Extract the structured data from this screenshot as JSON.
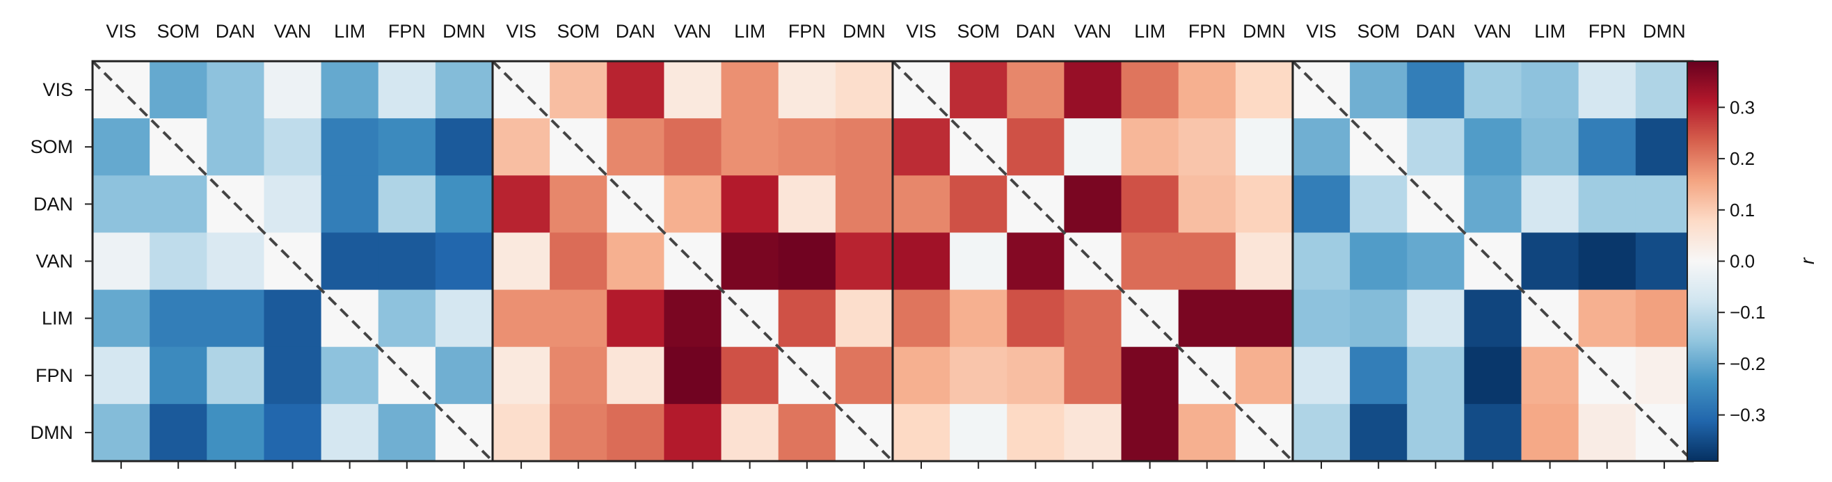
{
  "chart_data": {
    "type": "heatmap",
    "networks": [
      "VIS",
      "SOM",
      "DAN",
      "VAN",
      "LIM",
      "FPN",
      "DMN"
    ],
    "colorbar": {
      "label": "r",
      "vmin": -0.39,
      "vmax": 0.39,
      "ticks": [
        0.3,
        0.2,
        0.1,
        0.0,
        -0.1,
        -0.2,
        -0.3
      ],
      "tick_labels": [
        "0.3",
        "0.2",
        "0.1",
        "0.0",
        "−0.1",
        "−0.2",
        "−0.3"
      ],
      "colormap": "RdBu_r",
      "stops": [
        "#053061",
        "#2166ac",
        "#4393c3",
        "#92c5de",
        "#d1e5f0",
        "#f7f7f7",
        "#fddbc7",
        "#f4a582",
        "#d6604d",
        "#b2182b",
        "#67001f"
      ]
    },
    "diagonal_line": "dashed",
    "diagonal_color": "#444444",
    "matrices": [
      {
        "values": [
          [
            0.0,
            -0.2,
            -0.16,
            -0.02,
            -0.2,
            -0.07,
            -0.17
          ],
          [
            -0.2,
            0.0,
            -0.16,
            -0.1,
            -0.27,
            -0.25,
            -0.33
          ],
          [
            -0.16,
            -0.16,
            0.0,
            -0.06,
            -0.27,
            -0.12,
            -0.24
          ],
          [
            -0.02,
            -0.1,
            -0.06,
            0.0,
            -0.33,
            -0.33,
            -0.31
          ],
          [
            -0.2,
            -0.27,
            -0.27,
            -0.33,
            0.0,
            -0.16,
            -0.07
          ],
          [
            -0.07,
            -0.25,
            -0.12,
            -0.33,
            -0.16,
            0.0,
            -0.19
          ],
          [
            -0.17,
            -0.33,
            -0.24,
            -0.31,
            -0.07,
            -0.19,
            0.0
          ]
        ]
      },
      {
        "values": [
          [
            0.0,
            0.12,
            0.3,
            0.04,
            0.18,
            0.04,
            0.07
          ],
          [
            0.12,
            0.0,
            0.19,
            0.22,
            0.18,
            0.19,
            0.2
          ],
          [
            0.3,
            0.19,
            0.0,
            0.14,
            0.31,
            0.05,
            0.2
          ],
          [
            0.04,
            0.22,
            0.14,
            0.0,
            0.37,
            0.38,
            0.3
          ],
          [
            0.18,
            0.18,
            0.31,
            0.37,
            0.0,
            0.25,
            0.07
          ],
          [
            0.04,
            0.19,
            0.05,
            0.38,
            0.25,
            0.0,
            0.21
          ],
          [
            0.07,
            0.2,
            0.22,
            0.31,
            0.06,
            0.21,
            0.0
          ]
        ]
      },
      {
        "values": [
          [
            0.0,
            0.29,
            0.19,
            0.34,
            0.21,
            0.14,
            0.08
          ],
          [
            0.29,
            0.0,
            0.25,
            -0.01,
            0.13,
            0.11,
            -0.01
          ],
          [
            0.19,
            0.25,
            0.0,
            0.37,
            0.25,
            0.12,
            0.09
          ],
          [
            0.33,
            -0.01,
            0.36,
            0.0,
            0.22,
            0.22,
            0.05
          ],
          [
            0.21,
            0.14,
            0.25,
            0.22,
            0.0,
            0.37,
            0.37
          ],
          [
            0.14,
            0.11,
            0.12,
            0.22,
            0.37,
            0.0,
            0.14
          ],
          [
            0.08,
            -0.01,
            0.08,
            0.05,
            0.37,
            0.14,
            0.0
          ]
        ]
      },
      {
        "values": [
          [
            0.0,
            -0.19,
            -0.27,
            -0.14,
            -0.16,
            -0.07,
            -0.12
          ],
          [
            -0.19,
            0.0,
            -0.11,
            -0.22,
            -0.17,
            -0.27,
            -0.35
          ],
          [
            -0.27,
            -0.11,
            0.0,
            -0.2,
            -0.07,
            -0.14,
            -0.14
          ],
          [
            -0.14,
            -0.22,
            -0.2,
            0.0,
            -0.36,
            -0.38,
            -0.35
          ],
          [
            -0.16,
            -0.17,
            -0.07,
            -0.36,
            0.0,
            0.14,
            0.16
          ],
          [
            -0.07,
            -0.27,
            -0.14,
            -0.38,
            0.14,
            0.0,
            0.02
          ],
          [
            -0.12,
            -0.35,
            -0.14,
            -0.35,
            0.15,
            0.03,
            0.0
          ]
        ]
      }
    ]
  }
}
